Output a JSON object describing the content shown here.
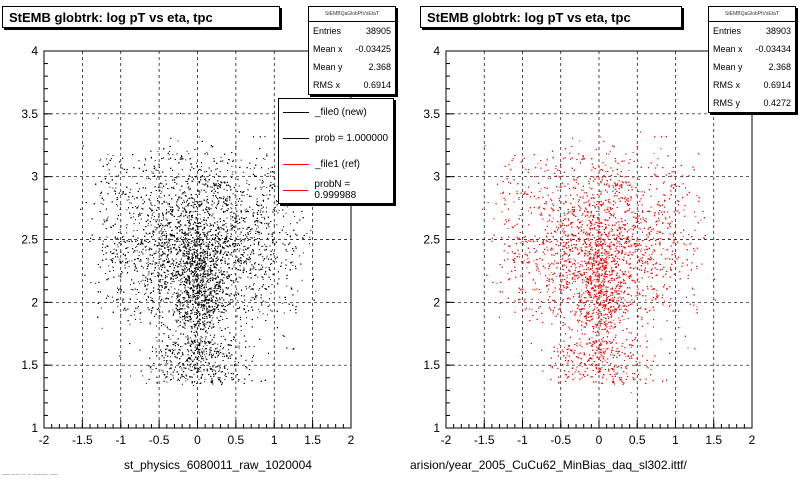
{
  "chart_data": [
    {
      "type": "scatter",
      "title": "StEMB globtrk: log pT vs eta, tpc",
      "xlabel": "st_physics_6080011_raw_1020004",
      "ylabel": "",
      "xlim": [
        -2,
        2
      ],
      "ylim": [
        1,
        4
      ],
      "x_ticks": [
        "-2",
        "-1.5",
        "-1",
        "-0.5",
        "0",
        "0.5",
        "1",
        "1.5",
        "2"
      ],
      "y_ticks": [
        "1",
        "1.5",
        "2",
        "2.5",
        "3",
        "3.5",
        "4"
      ],
      "grid": true,
      "marker_color": "#000000",
      "series": [
        {
          "name": "_file0 (new)",
          "color": "#000000"
        }
      ],
      "stats": {
        "header": "StEMBQaGlobPtVsEtaT",
        "rows": [
          {
            "label": "Entries",
            "value": "38905"
          },
          {
            "label": "Mean x",
            "value": "-0.03425"
          },
          {
            "label": "Mean y",
            "value": "2.368"
          },
          {
            "label": "RMS x",
            "value": "0.6914"
          }
        ]
      },
      "legend": {
        "placement": "top-right",
        "entries": [
          {
            "label": "_file0 (new)",
            "color": "#000000"
          },
          {
            "label": "prob = 1.000000",
            "color": "#000000"
          },
          {
            "label": "_file1 (ref)",
            "color": "#ff0000"
          },
          {
            "label": "probN = 0.999988",
            "color": "#ff0000"
          }
        ]
      }
    },
    {
      "type": "scatter",
      "title": "StEMB globtrk: log pT vs eta, tpc",
      "xlabel": "arision/year_2005_CuCu62_MinBias_daq_sl302.ittf/",
      "ylabel": "",
      "xlim": [
        -2,
        2
      ],
      "ylim": [
        1,
        4
      ],
      "x_ticks": [
        "-2",
        "-1.5",
        "-1",
        "-0.5",
        "0",
        "0.5",
        "1",
        "1.5",
        "2"
      ],
      "y_ticks": [
        "1",
        "1.5",
        "2",
        "2.5",
        "3",
        "3.5",
        "4"
      ],
      "grid": true,
      "marker_color": "#ff0000",
      "series": [
        {
          "name": "_file1 (ref)",
          "color": "#ff0000"
        }
      ],
      "stats": {
        "header": "StEMBQaGlobPtVsEtaT",
        "rows": [
          {
            "label": "Entries",
            "value": "38903"
          },
          {
            "label": "Mean x",
            "value": "-0.03434"
          },
          {
            "label": "Mean y",
            "value": "2.368"
          },
          {
            "label": "RMS x",
            "value": "0.6914"
          },
          {
            "label": "RMS y",
            "value": "0.4272"
          }
        ]
      }
    }
  ],
  "footer": "---- ---- -- -- -------- ----"
}
